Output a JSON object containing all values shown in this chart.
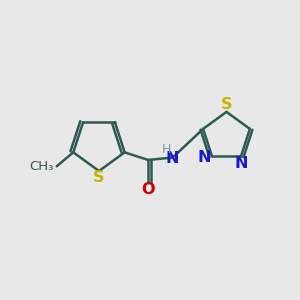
{
  "bg_color": "#e8e8e8",
  "bond_color": "#2d5a52",
  "S_color": "#c8b400",
  "N_color": "#1818cc",
  "O_color": "#cc0000",
  "H_color": "#7a9a9a",
  "methyl_color": "#2d5a52",
  "font_size": 11.5,
  "font_size_H": 9,
  "lw": 1.8,
  "xlim": [
    0,
    10
  ],
  "ylim": [
    0,
    10
  ]
}
